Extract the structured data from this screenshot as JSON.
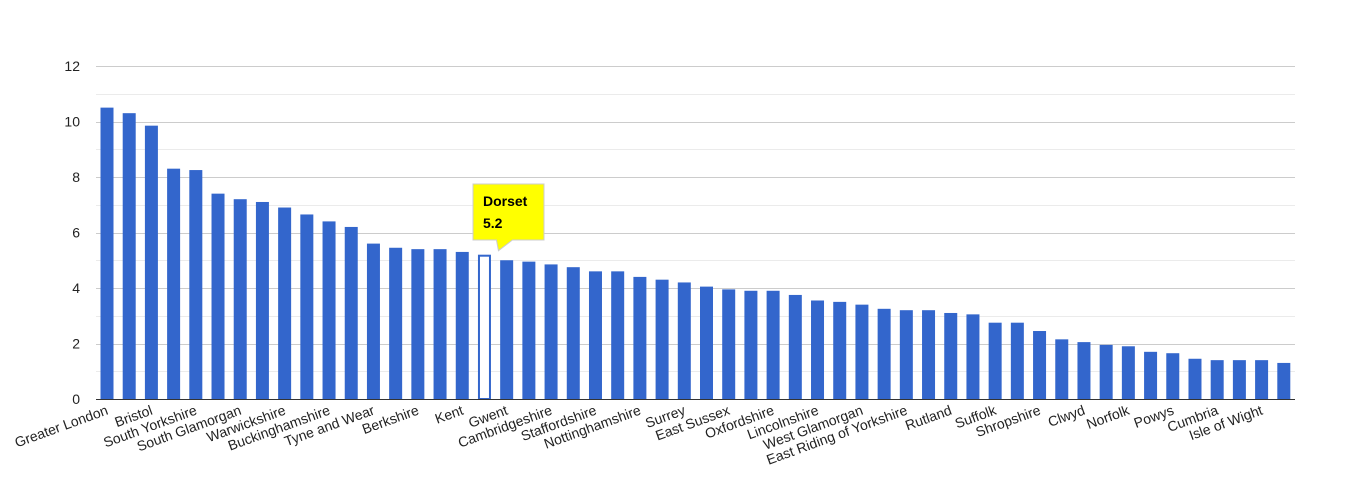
{
  "chart_data": {
    "type": "bar",
    "title": "",
    "xlabel": "",
    "ylabel": "",
    "ylim": [
      0,
      12
    ],
    "yticks": [
      "0",
      "2",
      "4",
      "6",
      "8",
      "10",
      "12"
    ],
    "grid": true,
    "legend": "none",
    "categories": [
      "Greater London",
      "cat-2",
      "Bristol",
      "cat-4",
      "South Yorkshire",
      "cat-6",
      "South Glamorgan",
      "cat-8",
      "Warwickshire",
      "cat-10",
      "Buckinghamshire",
      "cat-12",
      "Tyne and Wear",
      "cat-14",
      "Berkshire",
      "cat-16",
      "Kent",
      "Dorset",
      "Gwent",
      "cat-20",
      "Cambridgeshire",
      "cat-22",
      "Staffordshire",
      "cat-24",
      "Nottinghamshire",
      "cat-26",
      "Surrey",
      "cat-28",
      "East Sussex",
      "cat-30",
      "Oxfordshire",
      "cat-32",
      "Lincolnshire",
      "cat-34",
      "West Glamorgan",
      "cat-36",
      "East Riding of Yorkshire",
      "cat-38",
      "Rutland",
      "cat-40",
      "Suffolk",
      "cat-42",
      "Shropshire",
      "cat-44",
      "Clwyd",
      "cat-46",
      "Norfolk",
      "cat-48",
      "Powys",
      "cat-50",
      "Cumbria",
      "cat-52",
      "Isle of Wight",
      "cat-54"
    ],
    "label_shown": [
      true,
      false,
      true,
      false,
      true,
      false,
      true,
      false,
      true,
      false,
      true,
      false,
      true,
      false,
      true,
      false,
      true,
      false,
      true,
      false,
      true,
      false,
      true,
      false,
      true,
      false,
      true,
      false,
      true,
      false,
      true,
      false,
      true,
      false,
      true,
      false,
      true,
      false,
      true,
      false,
      true,
      false,
      true,
      false,
      true,
      false,
      true,
      false,
      true,
      false,
      true,
      false,
      true,
      false
    ],
    "values": [
      10.5,
      10.3,
      9.85,
      8.3,
      8.25,
      7.4,
      7.2,
      7.1,
      6.9,
      6.65,
      6.4,
      6.2,
      5.6,
      5.45,
      5.4,
      5.4,
      5.3,
      5.2,
      5.0,
      4.95,
      4.85,
      4.75,
      4.6,
      4.6,
      4.4,
      4.3,
      4.2,
      4.05,
      3.95,
      3.9,
      3.9,
      3.75,
      3.55,
      3.5,
      3.4,
      3.25,
      3.2,
      3.2,
      3.1,
      3.05,
      2.75,
      2.75,
      2.45,
      2.15,
      2.05,
      1.95,
      1.9,
      1.7,
      1.65,
      1.45,
      1.4,
      1.4,
      1.4,
      1.3
    ],
    "highlight_index": 17,
    "tooltip": {
      "label": "Dorset",
      "value": "5.2"
    },
    "colors": {
      "bar": "#3366cc",
      "highlight_fill": "#ffffff",
      "highlight_stroke": "#3366cc",
      "tooltip_bg": "#ffff00",
      "tooltip_border": "#cccccc",
      "grid_major": "#cccccc",
      "grid_minor": "#ebebeb",
      "axis": "#333333",
      "text": "#222222"
    }
  }
}
